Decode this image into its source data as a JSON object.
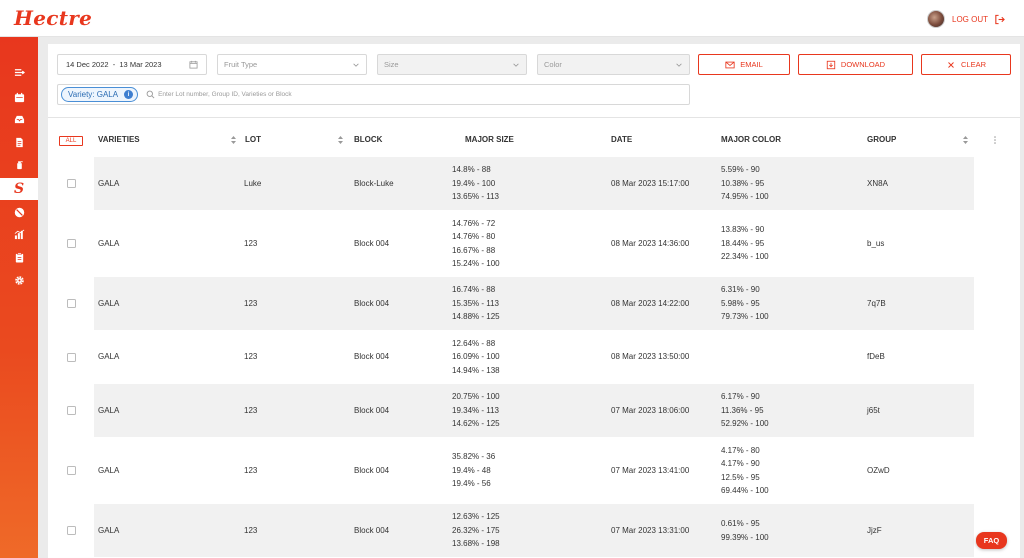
{
  "brand": {
    "name": "Hectre",
    "accent": "#e8371e"
  },
  "header": {
    "logout_label": "LOG OUT"
  },
  "sidebar": {
    "items": [
      {
        "icon": "menu-expand-icon"
      },
      {
        "icon": "calendar-icon"
      },
      {
        "icon": "inbox-icon"
      },
      {
        "icon": "document-icon"
      },
      {
        "icon": "spray-bottle-icon"
      },
      {
        "icon": "sizing-s-icon",
        "label": "S"
      },
      {
        "icon": "no-fruit-icon"
      },
      {
        "icon": "bar-chart-icon"
      },
      {
        "icon": "clipboard-icon"
      },
      {
        "icon": "gear-icon"
      }
    ]
  },
  "filters": {
    "date_start": "14 Dec 2022",
    "date_sep": "-",
    "date_end": "13 Mar 2023",
    "fruit_type_placeholder": "Fruit Type",
    "size_placeholder": "Size",
    "color_placeholder": "Color",
    "email_label": "EMAIL",
    "download_label": "DOWNLOAD",
    "clear_label": "CLEAR",
    "chip_label": "Variety: GALA",
    "search_placeholder": "Enter Lot number, Group ID, Varieties or Block"
  },
  "table": {
    "all_label": "ALL",
    "columns": {
      "varieties": "VARIETIES",
      "lot": "LOT",
      "block": "BLOCK",
      "major_size": "MAJOR SIZE",
      "date": "DATE",
      "major_color": "MAJOR COLOR",
      "group": "GROUP"
    },
    "rows": [
      {
        "variety": "GALA",
        "lot": "Luke",
        "block": "Block-Luke",
        "sizes": [
          "14.8% - 88",
          "19.4% - 100",
          "13.65% - 113"
        ],
        "date": "08 Mar 2023 15:17:00",
        "colors": [
          "5.59% - 90",
          "10.38% - 95",
          "74.95% - 100"
        ],
        "group": "XN8A"
      },
      {
        "variety": "GALA",
        "lot": "123",
        "block": "Block 004",
        "sizes": [
          "14.76% - 72",
          "14.76% - 80",
          "16.67% - 88",
          "15.24% - 100"
        ],
        "date": "08 Mar 2023 14:36:00",
        "colors": [
          "13.83% - 90",
          "18.44% - 95",
          "22.34% - 100"
        ],
        "group": "b_us"
      },
      {
        "variety": "GALA",
        "lot": "123",
        "block": "Block 004",
        "sizes": [
          "16.74% - 88",
          "15.35% - 113",
          "14.88% - 125"
        ],
        "date": "08 Mar 2023 14:22:00",
        "colors": [
          "6.31% - 90",
          "5.98% - 95",
          "79.73% - 100"
        ],
        "group": "7q7B"
      },
      {
        "variety": "GALA",
        "lot": "123",
        "block": "Block 004",
        "sizes": [
          "12.64% - 88",
          "16.09% - 100",
          "14.94% - 138"
        ],
        "date": "08 Mar 2023 13:50:00",
        "colors": [],
        "group": "fDeB"
      },
      {
        "variety": "GALA",
        "lot": "123",
        "block": "Block 004",
        "sizes": [
          "20.75% - 100",
          "19.34% - 113",
          "14.62% - 125"
        ],
        "date": "07 Mar 2023 18:06:00",
        "colors": [
          "6.17% - 90",
          "11.36% - 95",
          "52.92% - 100"
        ],
        "group": "j65t"
      },
      {
        "variety": "GALA",
        "lot": "123",
        "block": "Block 004",
        "sizes": [
          "35.82% - 36",
          "19.4% - 48",
          "19.4% - 56"
        ],
        "date": "07 Mar 2023 13:41:00",
        "colors": [
          "4.17% - 80",
          "4.17% - 90",
          "12.5% - 95",
          "69.44% - 100"
        ],
        "group": "OZwD"
      },
      {
        "variety": "GALA",
        "lot": "123",
        "block": "Block 004",
        "sizes": [
          "12.63% - 125",
          "26.32% - 175",
          "13.68% - 198"
        ],
        "date": "07 Mar 2023 13:31:00",
        "colors": [
          "0.61% - 95",
          "99.39% - 100"
        ],
        "group": "JjzF"
      }
    ]
  },
  "faq_label": "FAQ"
}
